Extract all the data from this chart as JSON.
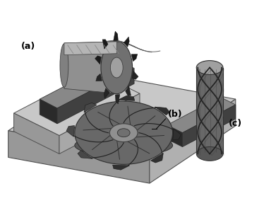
{
  "figsize": [
    3.91,
    3.11
  ],
  "dpi": 100,
  "bg_color": "#ffffff",
  "label_a": "(a)",
  "label_b": "(b)",
  "label_c": "(c)",
  "label_fontsize": 9,
  "plat_top": "#c8c8c8",
  "plat_left": "#989898",
  "plat_right": "#b0b0b0",
  "slot_dark": "#2a2a2a",
  "slot_mid": "#505050",
  "cutter_light": "#a0a0a0",
  "cutter_mid": "#686868",
  "cutter_dark": "#383838",
  "cutter_vdark": "#1e1e1e"
}
